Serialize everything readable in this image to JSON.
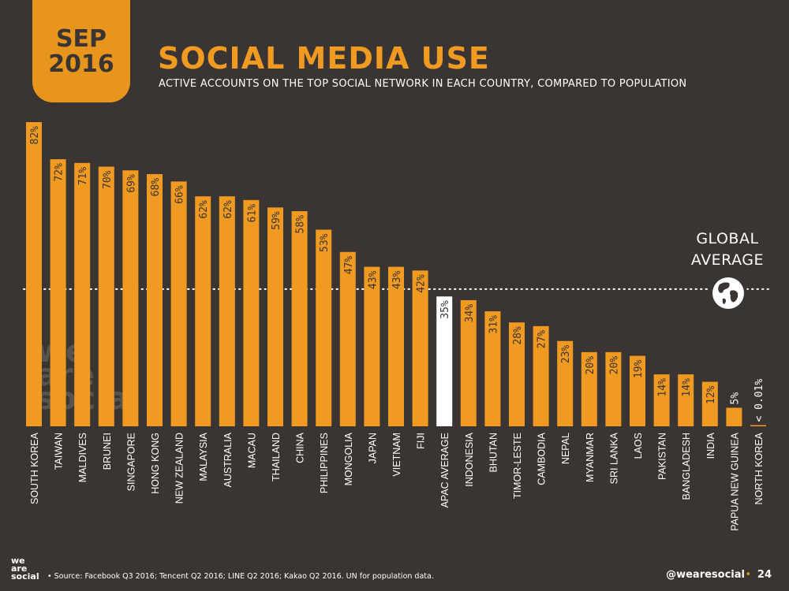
{
  "badge": {
    "month": "SEP",
    "year": "2016"
  },
  "header": {
    "title": "SOCIAL MEDIA USE",
    "subtitle": "ACTIVE ACCOUNTS ON THE TOP SOCIAL NETWORK IN EACH COUNTRY, COMPARED TO POPULATION"
  },
  "global_average": {
    "line1": "GLOBAL",
    "line2": "AVERAGE"
  },
  "watermark": {
    "line1": "we",
    "line2": "are",
    "line3": "social"
  },
  "footer": {
    "logo_line1": "we",
    "logo_line2": "are",
    "logo_line3": "social",
    "source": "• Source: Facebook Q3 2016; Tencent Q2 2016; LINE Q2 2016; Kakao Q2 2016. UN for population data.",
    "handle": "@wearesocial",
    "separator": "•",
    "page": "24"
  },
  "colors": {
    "background": "#3a3532",
    "bar": "#f09a22",
    "highlight_bar": "#ffffff",
    "accent": "#e8951e"
  },
  "chart_data": {
    "type": "bar",
    "categories": [
      "SOUTH KOREA",
      "TAIWAN",
      "MALDIVES",
      "BRUNEI",
      "SINGAPORE",
      "HONG KONG",
      "NEW ZEALAND",
      "MALAYSIA",
      "AUSTRALIA",
      "MACAU",
      "THAILAND",
      "CHINA",
      "PHILIPPINES",
      "MONGOLIA",
      "JAPAN",
      "VIETNAM",
      "FIJI",
      "APAC AVERAGE",
      "INDONESIA",
      "BHUTAN",
      "TIMOR-LESTE",
      "CAMBODIA",
      "NEPAL",
      "MYANMAR",
      "SRI LANKA",
      "LAOS",
      "PAKISTAN",
      "BANGLADESH",
      "INDIA",
      "PAPUA NEW GUINEA",
      "NORTH KOREA"
    ],
    "values": [
      82,
      72,
      71,
      70,
      69,
      68,
      66,
      62,
      62,
      61,
      59,
      58,
      53,
      47,
      43,
      43,
      42,
      35,
      34,
      31,
      28,
      27,
      23,
      20,
      20,
      19,
      14,
      14,
      12,
      5,
      0.01
    ],
    "labels": [
      "82%",
      "72%",
      "71%",
      "70%",
      "69%",
      "68%",
      "66%",
      "62%",
      "62%",
      "61%",
      "59%",
      "58%",
      "53%",
      "47%",
      "43%",
      "43%",
      "42%",
      "35%",
      "34%",
      "31%",
      "28%",
      "27%",
      "23%",
      "20%",
      "20%",
      "19%",
      "14%",
      "14%",
      "12%",
      "5%",
      "< 0.01%"
    ],
    "highlight": "APAC AVERAGE",
    "reference_line": {
      "value": 37,
      "style": "dotted"
    },
    "ylim": [
      0,
      82
    ]
  }
}
